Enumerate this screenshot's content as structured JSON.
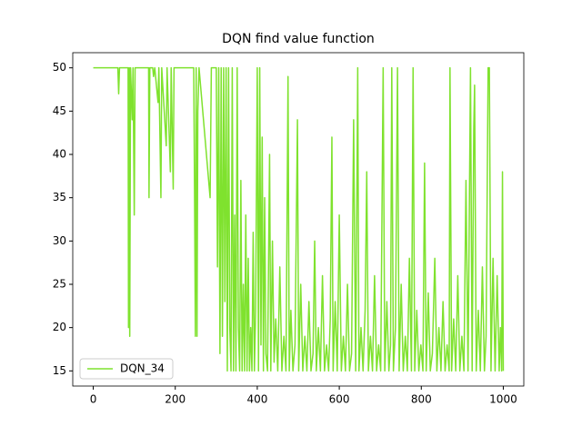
{
  "chart_data": {
    "type": "line",
    "title": "DQN find value function",
    "x": [
      0,
      60,
      62,
      64,
      85,
      86,
      88,
      89,
      91,
      95,
      97,
      100,
      102,
      135,
      136,
      138,
      145,
      147,
      150,
      158,
      160,
      165,
      167,
      178,
      180,
      188,
      190,
      195,
      197,
      245,
      247,
      249,
      251,
      253,
      255,
      258,
      285,
      288,
      300,
      303,
      306,
      309,
      312,
      315,
      318,
      321,
      324,
      327,
      330,
      333,
      336,
      339,
      342,
      345,
      348,
      351,
      354,
      357,
      360,
      363,
      366,
      369,
      372,
      375,
      378,
      381,
      384,
      387,
      390,
      393,
      396,
      400,
      403,
      406,
      409,
      412,
      415,
      418,
      421,
      425,
      430,
      433,
      437,
      441,
      445,
      450,
      455,
      460,
      465,
      470,
      475,
      478,
      482,
      487,
      492,
      498,
      501,
      506,
      511,
      516,
      521,
      526,
      531,
      536,
      540,
      544,
      549,
      554,
      559,
      564,
      569,
      574,
      578,
      582,
      585,
      590,
      595,
      600,
      605,
      610,
      615,
      620,
      625,
      630,
      635,
      640,
      645,
      648,
      653,
      658,
      663,
      667,
      671,
      676,
      681,
      686,
      691,
      696,
      701,
      707,
      711,
      716,
      721,
      725,
      728,
      732,
      737,
      742,
      746,
      751,
      756,
      761,
      766,
      771,
      776,
      780,
      784,
      789,
      794,
      799,
      804,
      808,
      812,
      817,
      822,
      827,
      833,
      838,
      843,
      848,
      853,
      858,
      863,
      868,
      870,
      874,
      879,
      884,
      889,
      894,
      899,
      904,
      909,
      914,
      920,
      924,
      928,
      930,
      934,
      939,
      944,
      949,
      954,
      958,
      963,
      966,
      970,
      975,
      980,
      985,
      990,
      993,
      996,
      998,
      1000
    ],
    "series": [
      {
        "name": "DQN_34",
        "color": "#7fe22e",
        "values": [
          50,
          50,
          47,
          50,
          50,
          20,
          50,
          19,
          50,
          44,
          50,
          33,
          50,
          50,
          35,
          50,
          50,
          49,
          50,
          46,
          50,
          35,
          50,
          41,
          50,
          38,
          50,
          36,
          50,
          50,
          36,
          19,
          50,
          19,
          45,
          50,
          35,
          50,
          50,
          27,
          50,
          17,
          50,
          19,
          50,
          23,
          50,
          15,
          50,
          20,
          15,
          50,
          15,
          33,
          15,
          50,
          20,
          15,
          37,
          15,
          25,
          15,
          33,
          15,
          28,
          15,
          20,
          15,
          31,
          15,
          22,
          50,
          15,
          50,
          18,
          42,
          15,
          35,
          17,
          15,
          40,
          15,
          30,
          16,
          21,
          15,
          27,
          15,
          19,
          15,
          49,
          15,
          22,
          15,
          18,
          44,
          15,
          25,
          15,
          19,
          15,
          23,
          15,
          17,
          30,
          15,
          20,
          15,
          26,
          15,
          18,
          15,
          21,
          42,
          15,
          23,
          15,
          33,
          15,
          19,
          15,
          25,
          15,
          17,
          44,
          15,
          50,
          15,
          20,
          15,
          22,
          38,
          15,
          19,
          15,
          26,
          15,
          18,
          15,
          50,
          15,
          23,
          15,
          18,
          50,
          15,
          20,
          50,
          15,
          25,
          15,
          19,
          15,
          28,
          15,
          50,
          15,
          22,
          15,
          18,
          15,
          39,
          15,
          24,
          15,
          17,
          28,
          15,
          20,
          15,
          23,
          15,
          18,
          15,
          50,
          15,
          21,
          15,
          26,
          15,
          19,
          15,
          37,
          15,
          50,
          15,
          43,
          48,
          15,
          22,
          15,
          27,
          15,
          19,
          50,
          50,
          15,
          28,
          15,
          26,
          15,
          20,
          15,
          38,
          15
        ]
      }
    ],
    "xlim": [
      -50,
      1050
    ],
    "ylim": [
      13.25,
      51.75
    ],
    "xticks": [
      0,
      200,
      400,
      600,
      800,
      1000
    ],
    "yticks": [
      15,
      20,
      25,
      30,
      35,
      40,
      45,
      50
    ],
    "legend": "lower left",
    "grid": false
  }
}
